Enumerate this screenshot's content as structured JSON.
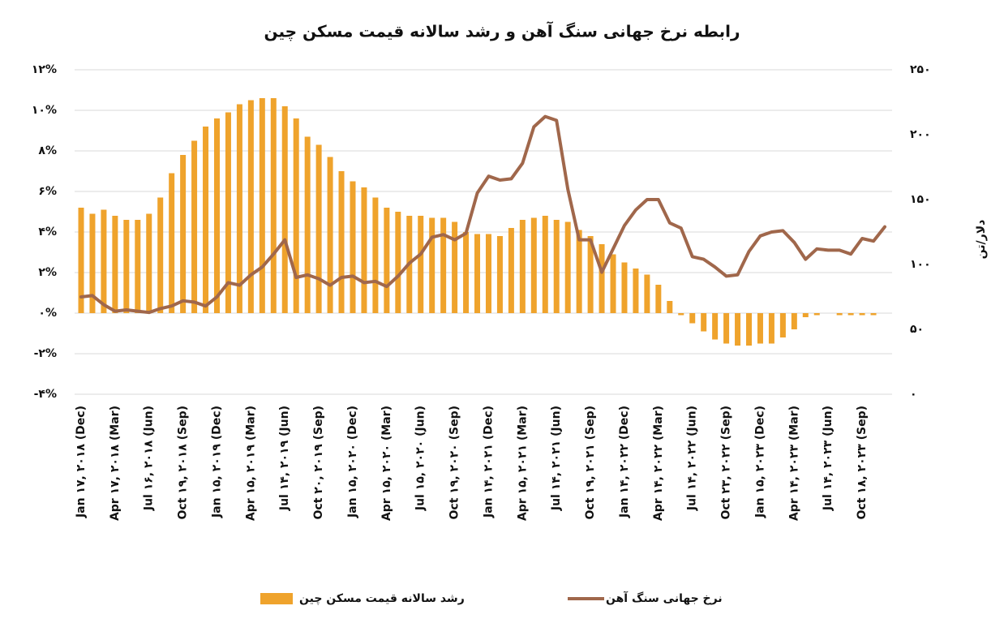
{
  "chart_data": {
    "type": "combo",
    "title": "رابطه نرخ جهانی سنگ آهن و رشد سالانه قیمت مسکن چین",
    "y2label": "دلار/تن",
    "categories": [
      "Jan ۱۷, ۲۰۱۸ (Dec)",
      null,
      null,
      "Apr ۱۷, ۲۰۱۸ (Mar)",
      null,
      null,
      "Jul ۱۶, ۲۰۱۸ (Jun)",
      null,
      null,
      "Oct ۱۹, ۲۰۱۸ (Sep)",
      null,
      null,
      "Jan ۱۵, ۲۰۱۹ (Dec)",
      null,
      null,
      "Apr ۱۵, ۲۰۱۹ (Mar)",
      null,
      null,
      "Jul ۱۴, ۲۰۱۹ (Jun)",
      null,
      null,
      "Oct ۲۰, ۲۰۱۹ (Sep)",
      null,
      null,
      "Jan ۱۵, ۲۰۲۰ (Dec)",
      null,
      null,
      "Apr ۱۵, ۲۰۲۰ (Mar)",
      null,
      null,
      "Jul ۱۵, ۲۰۲۰ (Jun)",
      null,
      null,
      "Oct ۱۹, ۲۰۲۰ (Sep)",
      null,
      null,
      "Jan ۱۴, ۲۰۲۱ (Dec)",
      null,
      null,
      "Apr ۱۵, ۲۰۲۱ (Mar)",
      null,
      null,
      "Jul ۱۴, ۲۰۲۱ (Jun)",
      null,
      null,
      "Oct ۱۹, ۲۰۲۱ (Sep)",
      null,
      null,
      "Jan ۱۴, ۲۰۲۲ (Dec)",
      null,
      null,
      "Apr ۱۴, ۲۰۲۲ (Mar)",
      null,
      null,
      "Jul ۱۴, ۲۰۲۲ (Jun)",
      null,
      null,
      "Oct ۲۳, ۲۰۲۲ (Sep)",
      null,
      null,
      "Jan ۱۵, ۲۰۲۳ (Dec)",
      null,
      null,
      "Apr ۱۴, ۲۰۲۳ (Mar)",
      null,
      null,
      "Jul ۱۴, ۲۰۲۳ (Jun)",
      null,
      null,
      "Oct ۱۸, ۲۰۲۳ (Sep)",
      null,
      null
    ],
    "series": [
      {
        "name": "رشد سالانه قیمت مسکن چین",
        "type": "bar",
        "color": "#efa32c",
        "values": [
          5.2,
          4.9,
          5.1,
          4.8,
          4.6,
          4.6,
          4.9,
          5.7,
          6.9,
          7.8,
          8.5,
          9.2,
          9.6,
          9.9,
          10.3,
          10.5,
          10.6,
          10.6,
          10.2,
          9.6,
          8.7,
          8.3,
          7.7,
          7.0,
          6.5,
          6.2,
          5.7,
          5.2,
          5.0,
          4.8,
          4.8,
          4.7,
          4.7,
          4.5,
          4.0,
          3.9,
          3.9,
          3.8,
          4.2,
          4.6,
          4.7,
          4.8,
          4.6,
          4.5,
          4.1,
          3.8,
          3.4,
          2.9,
          2.5,
          2.2,
          1.9,
          1.4,
          0.6,
          -0.1,
          -0.5,
          -0.9,
          -1.3,
          -1.5,
          -1.6,
          -1.6,
          -1.5,
          -1.5,
          -1.2,
          -0.8,
          -0.2,
          -0.1,
          0,
          -0.1,
          -0.1,
          -0.1,
          -0.1,
          null
        ]
      },
      {
        "name": "نرخ جهانی سنگ آهن",
        "type": "line",
        "axis": "y2",
        "color": "#a0674b",
        "values": [
          75,
          76,
          69,
          64,
          65,
          64,
          63,
          66,
          68,
          72,
          71,
          68,
          75,
          86,
          84,
          92,
          98,
          108,
          119,
          90,
          92,
          89,
          84,
          90,
          91,
          86,
          87,
          83,
          91,
          101,
          108,
          121,
          123,
          119,
          124,
          155,
          168,
          165,
          166,
          178,
          206,
          214,
          211,
          158,
          119,
          119,
          94,
          112,
          130,
          142,
          150,
          150,
          132,
          128,
          106,
          104,
          98,
          91,
          92,
          110,
          122,
          125,
          126,
          117,
          104,
          112,
          111,
          111,
          108,
          120,
          118,
          129
        ]
      }
    ],
    "ylim": [
      -4,
      12
    ],
    "yticks": [
      {
        "value": 12,
        "label": "۱۲%"
      },
      {
        "value": 10,
        "label": "۱۰%"
      },
      {
        "value": 8,
        "label": "۸%"
      },
      {
        "value": 6,
        "label": "۶%"
      },
      {
        "value": 4,
        "label": "۴%"
      },
      {
        "value": 2,
        "label": "۲%"
      },
      {
        "value": 0,
        "label": "۰%"
      },
      {
        "value": -2,
        "label": "-۲%"
      },
      {
        "value": -4,
        "label": "-۴%"
      }
    ],
    "y2lim": [
      0,
      250
    ],
    "y2ticks": [
      {
        "value": 250,
        "label": "۲۵۰"
      },
      {
        "value": 200,
        "label": "۲۰۰"
      },
      {
        "value": 150,
        "label": "۱۵۰"
      },
      {
        "value": 100,
        "label": "۱۰۰"
      },
      {
        "value": 50,
        "label": "۵۰"
      },
      {
        "value": 0,
        "label": "۰"
      }
    ],
    "grid": true,
    "legend": "bottom"
  }
}
